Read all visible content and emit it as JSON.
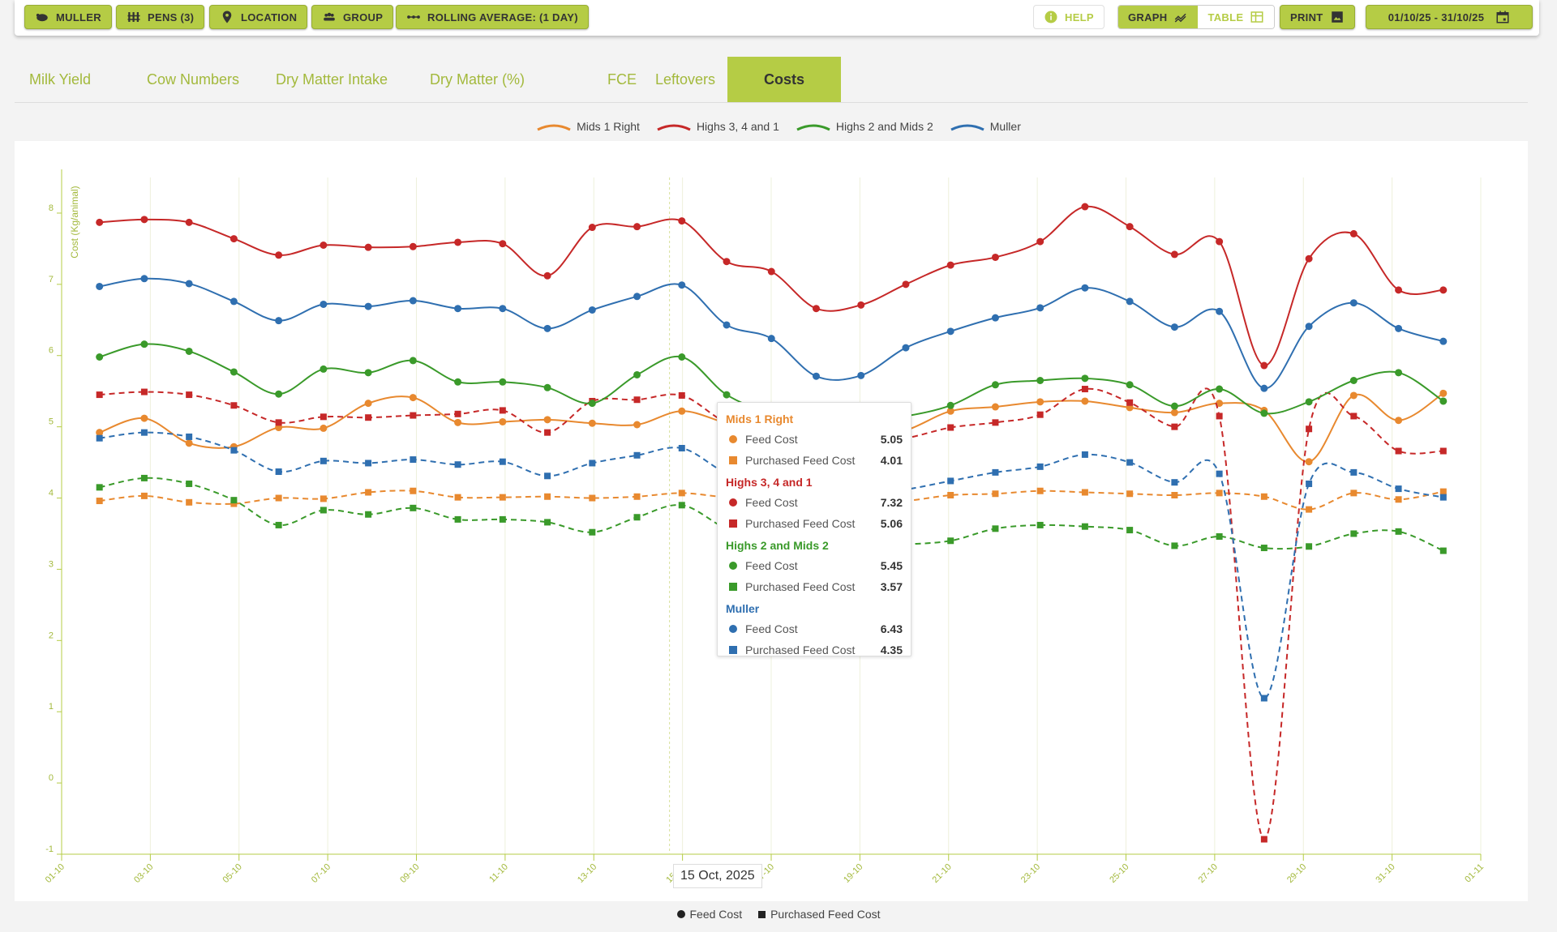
{
  "toolbar": {
    "muller": "MULLER",
    "pens": "PENS (3)",
    "location": "LOCATION",
    "group": "GROUP",
    "rolling": "ROLLING AVERAGE: (1 DAY)",
    "help": "HELP",
    "graph": "GRAPH",
    "table": "TABLE",
    "print": "PRINT",
    "date_range": "01/10/25 - 31/10/25"
  },
  "tabs": [
    {
      "label": "Milk Yield"
    },
    {
      "label": "Cow Numbers"
    },
    {
      "label": "Dry Matter Intake"
    },
    {
      "label": "Dry Matter (%)"
    },
    {
      "label": "FCE"
    },
    {
      "label": "Leftovers"
    },
    {
      "label": "Costs"
    }
  ],
  "legend_top": [
    {
      "name": "Mids 1 Right",
      "color": "#e8892f"
    },
    {
      "name": "Highs 3, 4 and 1",
      "color": "#c62828"
    },
    {
      "name": "Highs 2 and Mids 2",
      "color": "#3a9a2a"
    },
    {
      "name": "Muller",
      "color": "#2f6fb0"
    }
  ],
  "legend_bottom": [
    {
      "name": "Feed Cost"
    },
    {
      "name": "Purchased Feed Cost"
    }
  ],
  "tooltip": {
    "date": "15 Oct, 2025",
    "groups": [
      {
        "name": "Mids 1 Right",
        "color": "#e8892f",
        "feed_label": "Feed Cost",
        "feed": "5.05",
        "purchased_label": "Purchased Feed Cost",
        "purchased": "4.01"
      },
      {
        "name": "Highs 3, 4 and 1",
        "color": "#c62828",
        "feed_label": "Feed Cost",
        "feed": "7.32",
        "purchased_label": "Purchased Feed Cost",
        "purchased": "5.06"
      },
      {
        "name": "Highs 2 and Mids 2",
        "color": "#3a9a2a",
        "feed_label": "Feed Cost",
        "feed": "5.45",
        "purchased_label": "Purchased Feed Cost",
        "purchased": "3.57"
      },
      {
        "name": "Muller",
        "color": "#2f6fb0",
        "feed_label": "Feed Cost",
        "feed": "6.43",
        "purchased_label": "Purchased Feed Cost",
        "purchased": "4.35"
      }
    ]
  },
  "chart_data": {
    "type": "line",
    "ylabel": "Cost (Kg/animal)",
    "ylim": [
      -1,
      8.5
    ],
    "yticks": [
      "-1",
      "0",
      "1",
      "2",
      "3",
      "4",
      "5",
      "6",
      "7",
      "8"
    ],
    "xticks": [
      "01-10",
      "03-10",
      "05-10",
      "07-10",
      "09-10",
      "11-10",
      "13-10",
      "15-10",
      "17-10",
      "19-10",
      "21-10",
      "23-10",
      "25-10",
      "27-10",
      "29-10",
      "31-10",
      "01-11"
    ],
    "x": [
      "02-10",
      "03-10",
      "04-10",
      "05-10",
      "06-10",
      "07-10",
      "08-10",
      "09-10",
      "10-10",
      "11-10",
      "12-10",
      "13-10",
      "14-10",
      "15-10",
      "16-10",
      "17-10",
      "18-10",
      "19-10",
      "20-10",
      "21-10",
      "22-10",
      "23-10",
      "24-10",
      "25-10",
      "26-10",
      "27-10",
      "28-10",
      "29-10",
      "30-10",
      "31-10",
      "01-11"
    ],
    "series": [
      {
        "name": "Mids 1 Right",
        "metric": "Feed Cost",
        "color": "#e8892f",
        "dash": false,
        "values": [
          4.92,
          5.12,
          4.77,
          4.72,
          4.99,
          4.98,
          5.33,
          5.41,
          5.06,
          5.07,
          5.1,
          5.05,
          5.03,
          5.22,
          5.05,
          4.9,
          4.8,
          4.85,
          4.95,
          5.22,
          5.28,
          5.35,
          5.36,
          5.27,
          5.2,
          5.33,
          5.23,
          4.51,
          5.44,
          5.09,
          5.47
        ]
      },
      {
        "name": "Mids 1 Right",
        "metric": "Purchased Feed Cost",
        "color": "#e8892f",
        "dash": true,
        "values": [
          3.96,
          4.03,
          3.94,
          3.92,
          4.0,
          3.99,
          4.08,
          4.1,
          4.01,
          4.01,
          4.02,
          4.0,
          4.02,
          4.07,
          4.01,
          3.98,
          3.95,
          3.95,
          3.96,
          4.04,
          4.06,
          4.1,
          4.08,
          4.06,
          4.04,
          4.07,
          4.02,
          3.84,
          4.07,
          3.98,
          4.09
        ]
      },
      {
        "name": "Highs 3, 4 and 1",
        "metric": "Feed Cost",
        "color": "#c62828",
        "dash": false,
        "values": [
          7.87,
          7.91,
          7.87,
          7.64,
          7.41,
          7.55,
          7.52,
          7.53,
          7.59,
          7.57,
          7.12,
          7.8,
          7.81,
          7.89,
          7.32,
          7.18,
          6.66,
          6.71,
          7.0,
          7.27,
          7.38,
          7.6,
          8.09,
          7.81,
          7.42,
          7.6,
          5.86,
          7.36,
          7.71,
          6.92,
          6.92
        ]
      },
      {
        "name": "Highs 3, 4 and 1",
        "metric": "Purchased Feed Cost",
        "color": "#c62828",
        "dash": true,
        "values": [
          5.45,
          5.49,
          5.45,
          5.3,
          5.06,
          5.14,
          5.13,
          5.16,
          5.18,
          5.23,
          4.92,
          5.36,
          5.38,
          5.44,
          5.06,
          4.95,
          4.78,
          4.78,
          4.84,
          4.99,
          5.06,
          5.17,
          5.53,
          5.34,
          5.0,
          5.15,
          -0.79,
          4.97,
          5.15,
          4.66,
          4.66
        ]
      },
      {
        "name": "Highs 2 and Mids 2",
        "metric": "Feed Cost",
        "color": "#3a9a2a",
        "dash": false,
        "values": [
          5.98,
          6.16,
          6.06,
          5.77,
          5.46,
          5.81,
          5.76,
          5.93,
          5.63,
          5.63,
          5.55,
          5.33,
          5.73,
          5.98,
          5.45,
          5.2,
          5.15,
          5.1,
          5.15,
          5.3,
          5.59,
          5.65,
          5.68,
          5.59,
          5.29,
          5.53,
          5.19,
          5.35,
          5.65,
          5.76,
          5.36
        ]
      },
      {
        "name": "Highs 2 and Mids 2",
        "metric": "Purchased Feed Cost",
        "color": "#3a9a2a",
        "dash": true,
        "values": [
          4.15,
          4.28,
          4.2,
          3.97,
          3.62,
          3.83,
          3.77,
          3.86,
          3.7,
          3.7,
          3.66,
          3.52,
          3.73,
          3.9,
          3.57,
          3.4,
          3.35,
          3.32,
          3.35,
          3.4,
          3.57,
          3.62,
          3.6,
          3.55,
          3.33,
          3.46,
          3.3,
          3.32,
          3.5,
          3.53,
          3.26
        ]
      },
      {
        "name": "Muller",
        "metric": "Feed Cost",
        "color": "#2f6fb0",
        "dash": false,
        "values": [
          6.97,
          7.08,
          7.01,
          6.76,
          6.49,
          6.72,
          6.69,
          6.77,
          6.66,
          6.66,
          6.38,
          6.64,
          6.83,
          6.99,
          6.43,
          6.24,
          5.71,
          5.72,
          6.11,
          6.34,
          6.53,
          6.67,
          6.95,
          6.76,
          6.4,
          6.62,
          5.54,
          6.41,
          6.74,
          6.38,
          6.2
        ]
      },
      {
        "name": "Muller",
        "metric": "Purchased Feed Cost",
        "color": "#2f6fb0",
        "dash": true,
        "values": [
          4.84,
          4.92,
          4.86,
          4.67,
          4.37,
          4.52,
          4.49,
          4.54,
          4.47,
          4.51,
          4.31,
          4.49,
          4.6,
          4.7,
          4.35,
          4.2,
          4.05,
          4.05,
          4.12,
          4.24,
          4.36,
          4.44,
          4.61,
          4.5,
          4.22,
          4.34,
          1.19,
          4.2,
          4.36,
          4.13,
          4.01
        ]
      }
    ]
  }
}
